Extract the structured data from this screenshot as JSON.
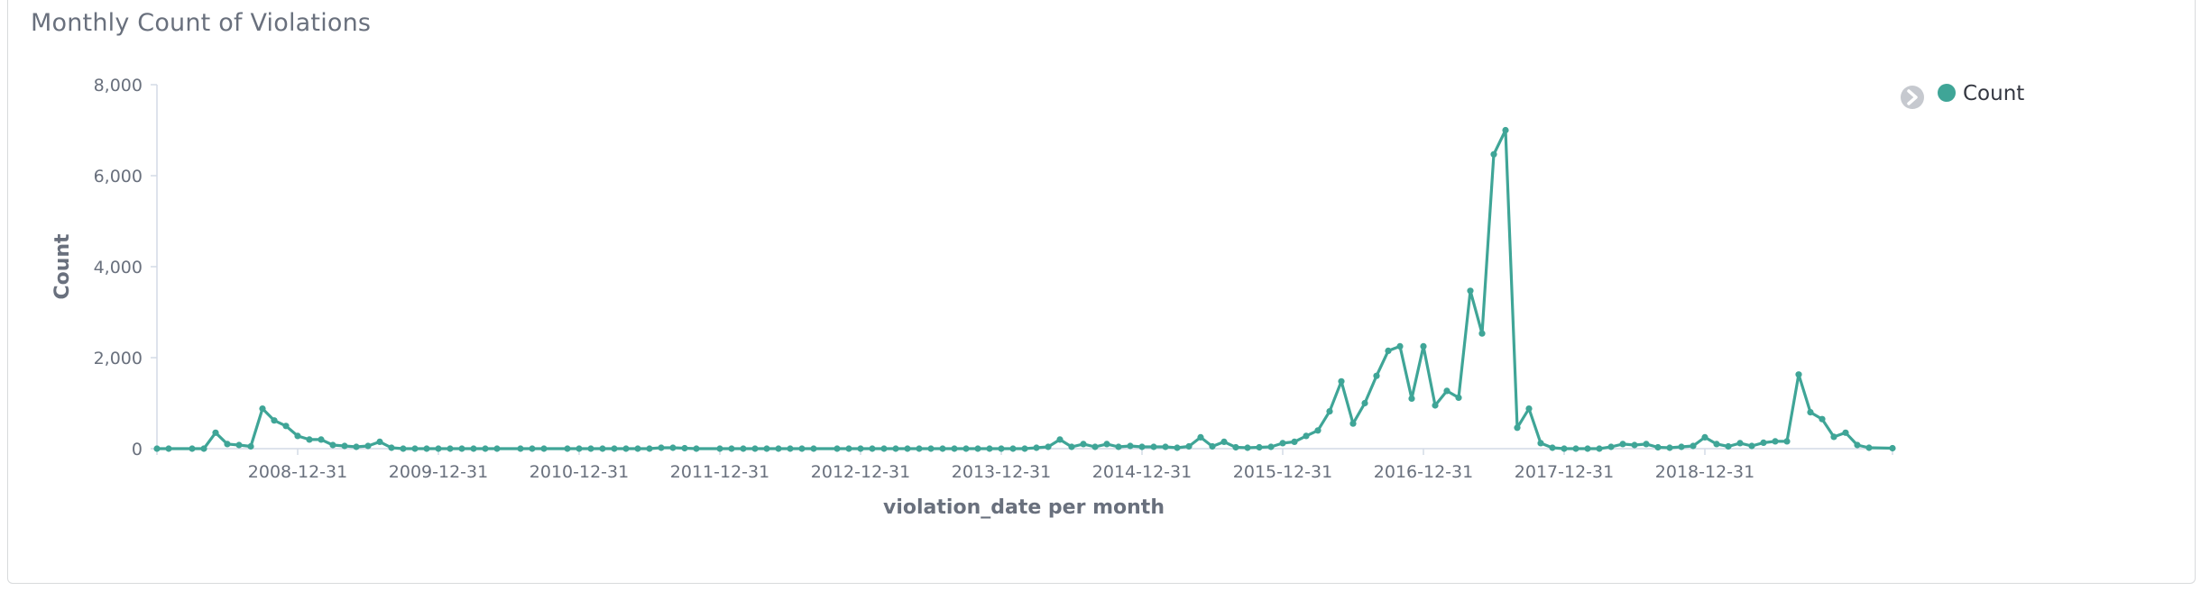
{
  "panel": {
    "title": "Monthly Count of Violations"
  },
  "legend": {
    "toggle_icon": "chevron-right-icon",
    "entries": [
      "Count"
    ]
  },
  "colors": {
    "series": "#3fa597",
    "axis": "#d3dae6",
    "text": "#69707d"
  },
  "chart_data": {
    "type": "line",
    "xlabel": "violation_date per month",
    "ylabel": "Count",
    "ylim": [
      0,
      8000
    ],
    "yticks": [
      0,
      2000,
      4000,
      6000,
      8000
    ],
    "ytick_labels": [
      "0",
      "2,000",
      "4,000",
      "6,000",
      "8,000"
    ],
    "xlim": [
      "2007-12",
      "2020-04"
    ],
    "xticks": [
      "2008-12",
      "2009-12",
      "2010-12",
      "2011-12",
      "2012-12",
      "2013-12",
      "2014-12",
      "2015-12",
      "2016-12",
      "2017-12",
      "2018-12"
    ],
    "xtick_labels": [
      "2008-12-31",
      "2009-12-31",
      "2010-12-31",
      "2011-12-31",
      "2012-12-31",
      "2013-12-31",
      "2014-12-31",
      "2015-12-31",
      "2016-12-31",
      "2017-12-31",
      "2018-12-31"
    ],
    "legend_position": "top-right",
    "grid": false,
    "series": [
      {
        "name": "Count",
        "color": "#3fa597",
        "points": [
          [
            "2007-12",
            0
          ],
          [
            "2008-01",
            0
          ],
          [
            "2008-03",
            0
          ],
          [
            "2008-04",
            0
          ],
          [
            "2008-05",
            350
          ],
          [
            "2008-06",
            100
          ],
          [
            "2008-07",
            80
          ],
          [
            "2008-08",
            50
          ],
          [
            "2008-09",
            880
          ],
          [
            "2008-10",
            620
          ],
          [
            "2008-11",
            500
          ],
          [
            "2008-12",
            280
          ],
          [
            "2009-01",
            200
          ],
          [
            "2009-02",
            200
          ],
          [
            "2009-03",
            80
          ],
          [
            "2009-04",
            60
          ],
          [
            "2009-05",
            40
          ],
          [
            "2009-06",
            60
          ],
          [
            "2009-07",
            150
          ],
          [
            "2009-08",
            20
          ],
          [
            "2009-09",
            0
          ],
          [
            "2009-10",
            0
          ],
          [
            "2009-11",
            0
          ],
          [
            "2009-12",
            0
          ],
          [
            "2010-01",
            0
          ],
          [
            "2010-02",
            0
          ],
          [
            "2010-03",
            0
          ],
          [
            "2010-04",
            0
          ],
          [
            "2010-05",
            0
          ],
          [
            "2010-07",
            0
          ],
          [
            "2010-08",
            0
          ],
          [
            "2010-09",
            0
          ],
          [
            "2010-11",
            0
          ],
          [
            "2010-12",
            0
          ],
          [
            "2011-01",
            0
          ],
          [
            "2011-02",
            0
          ],
          [
            "2011-03",
            0
          ],
          [
            "2011-04",
            0
          ],
          [
            "2011-05",
            0
          ],
          [
            "2011-06",
            0
          ],
          [
            "2011-07",
            20
          ],
          [
            "2011-08",
            20
          ],
          [
            "2011-09",
            10
          ],
          [
            "2011-10",
            0
          ],
          [
            "2011-12",
            0
          ],
          [
            "2012-01",
            0
          ],
          [
            "2012-02",
            0
          ],
          [
            "2012-03",
            0
          ],
          [
            "2012-04",
            0
          ],
          [
            "2012-05",
            0
          ],
          [
            "2012-06",
            0
          ],
          [
            "2012-07",
            0
          ],
          [
            "2012-08",
            0
          ],
          [
            "2012-10",
            0
          ],
          [
            "2012-11",
            0
          ],
          [
            "2012-12",
            0
          ],
          [
            "2013-01",
            0
          ],
          [
            "2013-02",
            0
          ],
          [
            "2013-03",
            0
          ],
          [
            "2013-04",
            0
          ],
          [
            "2013-05",
            0
          ],
          [
            "2013-06",
            0
          ],
          [
            "2013-07",
            0
          ],
          [
            "2013-08",
            0
          ],
          [
            "2013-09",
            0
          ],
          [
            "2013-10",
            0
          ],
          [
            "2013-11",
            0
          ],
          [
            "2013-12",
            0
          ],
          [
            "2014-01",
            0
          ],
          [
            "2014-02",
            0
          ],
          [
            "2014-03",
            20
          ],
          [
            "2014-04",
            40
          ],
          [
            "2014-05",
            200
          ],
          [
            "2014-06",
            40
          ],
          [
            "2014-07",
            100
          ],
          [
            "2014-08",
            40
          ],
          [
            "2014-09",
            100
          ],
          [
            "2014-10",
            40
          ],
          [
            "2014-11",
            60
          ],
          [
            "2014-12",
            40
          ],
          [
            "2015-01",
            40
          ],
          [
            "2015-02",
            40
          ],
          [
            "2015-03",
            20
          ],
          [
            "2015-04",
            50
          ],
          [
            "2015-05",
            250
          ],
          [
            "2015-06",
            50
          ],
          [
            "2015-07",
            150
          ],
          [
            "2015-08",
            30
          ],
          [
            "2015-09",
            20
          ],
          [
            "2015-10",
            30
          ],
          [
            "2015-11",
            40
          ],
          [
            "2015-12",
            120
          ],
          [
            "2016-01",
            150
          ],
          [
            "2016-02",
            280
          ],
          [
            "2016-03",
            400
          ],
          [
            "2016-04",
            820
          ],
          [
            "2016-05",
            1480
          ],
          [
            "2016-06",
            550
          ],
          [
            "2016-07",
            1000
          ],
          [
            "2016-08",
            1600
          ],
          [
            "2016-09",
            2150
          ],
          [
            "2016-10",
            2250
          ],
          [
            "2016-11",
            1100
          ],
          [
            "2016-12",
            2250
          ],
          [
            "2017-01",
            950
          ],
          [
            "2017-02",
            1270
          ],
          [
            "2017-03",
            1120
          ],
          [
            "2017-04",
            3470
          ],
          [
            "2017-05",
            2530
          ],
          [
            "2017-06",
            6470
          ],
          [
            "2017-07",
            7000
          ],
          [
            "2017-08",
            460
          ],
          [
            "2017-09",
            880
          ],
          [
            "2017-10",
            120
          ],
          [
            "2017-11",
            20
          ],
          [
            "2017-12",
            0
          ],
          [
            "2018-01",
            0
          ],
          [
            "2018-02",
            0
          ],
          [
            "2018-03",
            0
          ],
          [
            "2018-04",
            40
          ],
          [
            "2018-05",
            100
          ],
          [
            "2018-06",
            80
          ],
          [
            "2018-07",
            100
          ],
          [
            "2018-08",
            30
          ],
          [
            "2018-09",
            20
          ],
          [
            "2018-10",
            40
          ],
          [
            "2018-11",
            60
          ],
          [
            "2018-12",
            250
          ],
          [
            "2019-01",
            100
          ],
          [
            "2019-02",
            50
          ],
          [
            "2019-03",
            120
          ],
          [
            "2019-04",
            60
          ],
          [
            "2019-05",
            130
          ],
          [
            "2019-06",
            160
          ],
          [
            "2019-07",
            160
          ],
          [
            "2019-08",
            1630
          ],
          [
            "2019-09",
            800
          ],
          [
            "2019-10",
            650
          ],
          [
            "2019-11",
            260
          ],
          [
            "2019-12",
            350
          ],
          [
            "2020-01",
            80
          ],
          [
            "2020-02",
            20
          ],
          [
            "2020-04",
            10
          ]
        ]
      }
    ]
  }
}
